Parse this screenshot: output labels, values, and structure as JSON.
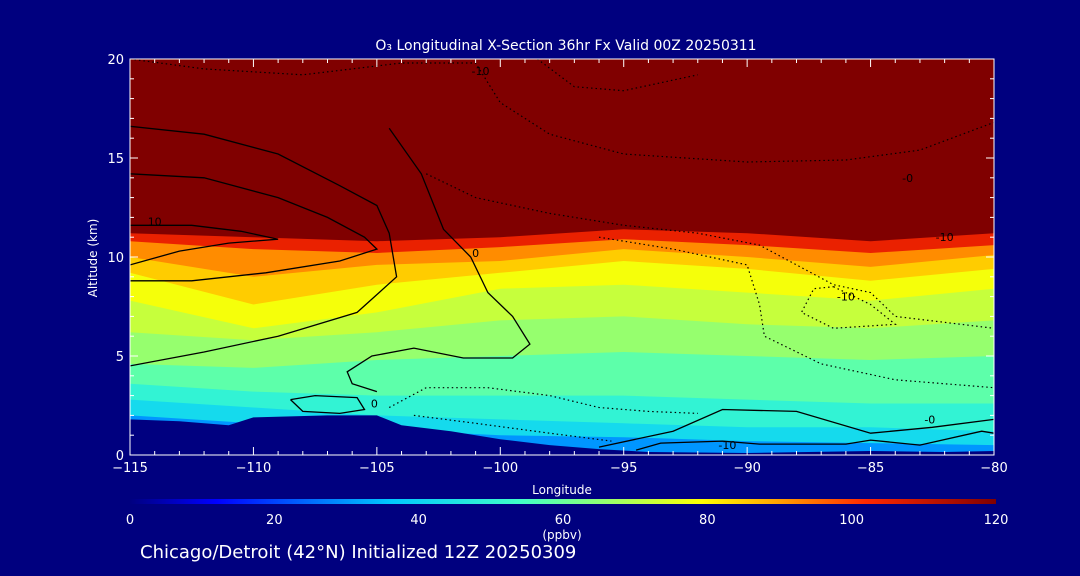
{
  "title": "O₃ Longitudinal X-Section 36hr  Fx Valid 00Z 20250311",
  "footer": "Chicago/Detroit (42°N) Initialized 12Z 20250309",
  "chart_data": {
    "type": "heatmap",
    "title": "O₃ Longitudinal X-Section 36hr  Fx Valid 00Z 20250311",
    "xlabel": "Longitude",
    "ylabel": "Altitude (km)",
    "xlim": [
      -115,
      -80
    ],
    "ylim": [
      0,
      20
    ],
    "x_ticks": [
      -115,
      -110,
      -105,
      -100,
      -95,
      -90,
      -85,
      -80
    ],
    "x_tick_labels": [
      "−115",
      "−110",
      "−105",
      "−100",
      "−95",
      "−90",
      "−85",
      "−80"
    ],
    "y_ticks": [
      0,
      5,
      10,
      15,
      20
    ],
    "y_tick_labels": [
      "0",
      "5",
      "10",
      "15",
      "20"
    ],
    "colorbar": {
      "label": "(ppbv)",
      "range": [
        0,
        120
      ],
      "ticks": [
        0,
        20,
        40,
        60,
        80,
        100,
        120
      ],
      "tick_labels": [
        "0",
        "20",
        "40",
        "60",
        "80",
        "100",
        "120"
      ]
    },
    "colors": {
      "background": "#00007f",
      "stratosphere": "#800000",
      "low": "#000080",
      "contour": "#000000"
    },
    "layers": [
      {
        "value": 120,
        "altitude_km": [
          20,
          20,
          20,
          20,
          20,
          20,
          20,
          20
        ]
      },
      {
        "value": 105,
        "altitude_km": [
          11.2,
          11.0,
          10.8,
          11.0,
          11.4,
          11.2,
          10.8,
          11.2
        ]
      },
      {
        "value": 92,
        "altitude_km": [
          10.8,
          10.4,
          10.2,
          10.5,
          10.9,
          10.6,
          10.2,
          10.6
        ]
      },
      {
        "value": 85,
        "altitude_km": [
          10.0,
          9.0,
          9.6,
          9.8,
          10.4,
          10.0,
          9.5,
          10.1
        ]
      },
      {
        "value": 78,
        "altitude_km": [
          9.2,
          7.6,
          8.6,
          9.2,
          9.8,
          9.4,
          8.8,
          9.4
        ]
      },
      {
        "value": 72,
        "altitude_km": [
          7.8,
          6.4,
          7.2,
          8.4,
          8.6,
          8.2,
          7.8,
          8.4
        ]
      },
      {
        "value": 66,
        "altitude_km": [
          6.2,
          5.8,
          6.2,
          6.8,
          7.0,
          6.6,
          6.4,
          6.8
        ]
      },
      {
        "value": 58,
        "altitude_km": [
          4.6,
          4.4,
          4.8,
          5.0,
          5.2,
          5.0,
          4.8,
          5.0
        ]
      },
      {
        "value": 50,
        "altitude_km": [
          3.6,
          3.2,
          3.0,
          3.0,
          3.0,
          2.8,
          2.6,
          2.6
        ]
      },
      {
        "value": 42,
        "altitude_km": [
          2.8,
          2.4,
          2.0,
          1.8,
          1.6,
          1.4,
          1.4,
          1.2
        ]
      },
      {
        "value": 30,
        "altitude_km": [
          2.0,
          1.6,
          1.3,
          1.0,
          0.9,
          0.7,
          0.6,
          0.5
        ]
      }
    ],
    "layer_x": [
      -115,
      -110,
      -105,
      -100,
      -95,
      -90,
      -85,
      -80
    ],
    "terrain_km": [
      [
        -115,
        1.8
      ],
      [
        -113,
        1.7
      ],
      [
        -111,
        1.5
      ],
      [
        -110,
        1.9
      ],
      [
        -107,
        2.0
      ],
      [
        -105,
        2.0
      ],
      [
        -104,
        1.5
      ],
      [
        -102,
        1.2
      ],
      [
        -100,
        0.8
      ],
      [
        -98,
        0.5
      ],
      [
        -96,
        0.3
      ],
      [
        -94,
        0.15
      ],
      [
        -90,
        0.1
      ],
      [
        -85,
        0.2
      ],
      [
        -82,
        0.15
      ],
      [
        -80,
        0.2
      ]
    ],
    "contours": [
      {
        "style": "solid",
        "points": [
          [
            -115,
            16.6
          ],
          [
            -112,
            16.2
          ],
          [
            -109,
            15.2
          ],
          [
            -106.5,
            13.6
          ],
          [
            -105,
            12.6
          ],
          [
            -104.5,
            11.2
          ],
          [
            -104.2,
            9.0
          ],
          [
            -105.8,
            7.2
          ],
          [
            -109,
            6.0
          ],
          [
            -112,
            5.2
          ],
          [
            -115,
            4.5
          ]
        ]
      },
      {
        "style": "solid",
        "points": [
          [
            -115,
            14.2
          ],
          [
            -112,
            14.0
          ],
          [
            -109,
            13.0
          ],
          [
            -107,
            12.0
          ],
          [
            -105.5,
            11.0
          ],
          [
            -105,
            10.4
          ],
          [
            -106.5,
            9.8
          ],
          [
            -109.5,
            9.2
          ],
          [
            -112.5,
            8.8
          ],
          [
            -115,
            8.8
          ]
        ]
      },
      {
        "style": "solid",
        "points": [
          [
            -115,
            9.6
          ],
          [
            -113,
            10.3
          ],
          [
            -111,
            10.7
          ],
          [
            -109,
            10.9
          ],
          [
            -110.5,
            11.3
          ],
          [
            -112.5,
            11.6
          ],
          [
            -115,
            11.6
          ]
        ]
      },
      {
        "style": "solid",
        "points": [
          [
            -104.5,
            16.5
          ],
          [
            -103.2,
            14.2
          ],
          [
            -102.3,
            11.4
          ],
          [
            -101.2,
            10.0
          ],
          [
            -100.5,
            8.2
          ],
          [
            -99.5,
            7.0
          ],
          [
            -98.8,
            5.6
          ],
          [
            -99.5,
            4.9
          ],
          [
            -101.5,
            4.9
          ],
          [
            -103.5,
            5.4
          ],
          [
            -105.2,
            5.0
          ],
          [
            -106.2,
            4.2
          ],
          [
            -106.0,
            3.6
          ],
          [
            -105.0,
            3.2
          ]
        ]
      },
      {
        "style": "solid",
        "points": [
          [
            -108.5,
            2.8
          ],
          [
            -108,
            2.2
          ],
          [
            -106.5,
            2.1
          ],
          [
            -105.5,
            2.3
          ],
          [
            -105.8,
            2.9
          ],
          [
            -107.5,
            3.0
          ],
          [
            -108.5,
            2.8
          ]
        ]
      },
      {
        "style": "solid",
        "points": [
          [
            -96,
            0.4
          ],
          [
            -93,
            1.2
          ],
          [
            -91,
            2.3
          ],
          [
            -88,
            2.2
          ],
          [
            -85,
            1.1
          ],
          [
            -82.5,
            1.4
          ],
          [
            -80,
            1.8
          ]
        ]
      },
      {
        "style": "solid",
        "points": [
          [
            -94.5,
            0.25
          ],
          [
            -93.5,
            0.6
          ],
          [
            -91,
            0.7
          ],
          [
            -89.5,
            0.55
          ],
          [
            -86,
            0.55
          ],
          [
            -85,
            0.75
          ],
          [
            -83,
            0.5
          ],
          [
            -80.5,
            1.2
          ],
          [
            -80,
            1.1
          ]
        ]
      },
      {
        "style": "dotted",
        "points": [
          [
            -115,
            20
          ],
          [
            -112,
            19.5
          ],
          [
            -108,
            19.2
          ],
          [
            -104,
            19.8
          ],
          [
            -101,
            19.8
          ],
          [
            -100,
            17.8
          ],
          [
            -98,
            16.2
          ],
          [
            -95,
            15.2
          ],
          [
            -90,
            14.8
          ],
          [
            -86,
            14.9
          ],
          [
            -83,
            15.4
          ],
          [
            -80,
            16.8
          ]
        ]
      },
      {
        "style": "dotted",
        "points": [
          [
            -98.5,
            20
          ],
          [
            -97,
            18.6
          ],
          [
            -95,
            18.4
          ],
          [
            -92,
            19.2
          ]
        ]
      },
      {
        "style": "dotted",
        "points": [
          [
            -103,
            14.2
          ],
          [
            -101,
            13.0
          ],
          [
            -98,
            12.2
          ],
          [
            -95,
            11.6
          ],
          [
            -92,
            11.2
          ],
          [
            -89.5,
            10.6
          ],
          [
            -88,
            9.6
          ],
          [
            -86.5,
            8.6
          ],
          [
            -85,
            8.2
          ],
          [
            -84,
            7.0
          ],
          [
            -80,
            6.4
          ]
        ]
      },
      {
        "style": "dotted",
        "points": [
          [
            -96,
            11.0
          ],
          [
            -93,
            10.4
          ],
          [
            -90,
            9.6
          ],
          [
            -89.5,
            7.6
          ],
          [
            -89.3,
            6.0
          ],
          [
            -87,
            4.6
          ],
          [
            -84,
            3.8
          ],
          [
            -80,
            3.4
          ]
        ]
      },
      {
        "style": "dotted",
        "points": [
          [
            -104.5,
            2.4
          ],
          [
            -103,
            3.4
          ],
          [
            -100.5,
            3.4
          ],
          [
            -98,
            3.0
          ],
          [
            -96,
            2.4
          ],
          [
            -94,
            2.2
          ],
          [
            -92,
            2.1
          ]
        ]
      },
      {
        "style": "dotted",
        "points": [
          [
            -103.5,
            2.0
          ],
          [
            -101,
            1.6
          ],
          [
            -98,
            1.1
          ],
          [
            -95.5,
            0.7
          ]
        ]
      },
      {
        "style": "dotted",
        "points": [
          [
            -86.5,
            8.5
          ],
          [
            -85,
            7.6
          ],
          [
            -84,
            6.6
          ],
          [
            -86.5,
            6.4
          ],
          [
            -87.8,
            7.2
          ],
          [
            -87.3,
            8.4
          ],
          [
            -86.5,
            8.5
          ]
        ]
      }
    ],
    "contour_labels": [
      {
        "text": "10",
        "x": -114.0,
        "y": 11.6
      },
      {
        "text": "0",
        "x": -101.0,
        "y": 10.0
      },
      {
        "text": "0",
        "x": -105.1,
        "y": 2.4
      },
      {
        "text": "-10",
        "x": -100.8,
        "y": 19.2
      },
      {
        "text": "-10",
        "x": -90.8,
        "y": 0.3
      },
      {
        "text": "-0",
        "x": -83.5,
        "y": 13.8
      },
      {
        "text": "-10",
        "x": -82.0,
        "y": 10.8
      },
      {
        "text": "-10",
        "x": -86.0,
        "y": 7.8
      },
      {
        "text": "-0",
        "x": -82.6,
        "y": 1.6
      }
    ]
  }
}
